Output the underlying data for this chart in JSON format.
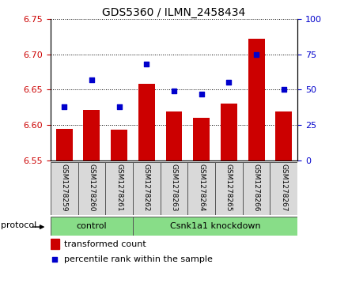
{
  "title": "GDS5360 / ILMN_2458434",
  "samples": [
    "GSM1278259",
    "GSM1278260",
    "GSM1278261",
    "GSM1278262",
    "GSM1278263",
    "GSM1278264",
    "GSM1278265",
    "GSM1278266",
    "GSM1278267"
  ],
  "bar_values": [
    6.595,
    6.622,
    6.594,
    6.658,
    6.619,
    6.61,
    6.631,
    6.722,
    6.619
  ],
  "dot_values": [
    38,
    57,
    38,
    68,
    49,
    47,
    55,
    75,
    50
  ],
  "ylim_left": [
    6.55,
    6.75
  ],
  "ylim_right": [
    0,
    100
  ],
  "yticks_left": [
    6.55,
    6.6,
    6.65,
    6.7,
    6.75
  ],
  "yticks_right": [
    0,
    25,
    50,
    75,
    100
  ],
  "bar_color": "#cc0000",
  "dot_color": "#0000cc",
  "bar_width": 0.6,
  "protocol_label": "protocol",
  "legend_bar_label": "transformed count",
  "legend_dot_label": "percentile rank within the sample",
  "tick_label_color_left": "#cc0000",
  "tick_label_color_right": "#0000cc",
  "ctrl_count": 3,
  "kd_count": 6
}
